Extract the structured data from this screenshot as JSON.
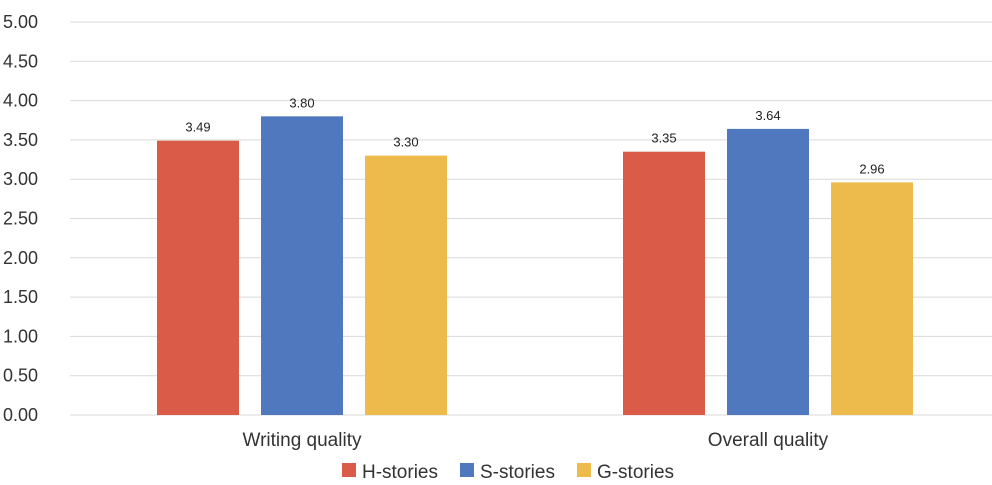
{
  "chart_data": {
    "type": "bar",
    "categories": [
      "Writing quality",
      "Overall quality"
    ],
    "series": [
      {
        "name": "H-stories",
        "values": [
          3.49,
          3.35
        ],
        "color": "#DA5B47"
      },
      {
        "name": "S-stories",
        "values": [
          3.8,
          3.64
        ],
        "color": "#5078BF"
      },
      {
        "name": "G-stories",
        "values": [
          3.3,
          2.96
        ],
        "color": "#EDBB4B"
      }
    ],
    "title": "",
    "xlabel": "",
    "ylabel": "",
    "ylim": [
      0,
      5
    ],
    "yticks": [
      "0.00",
      "0.50",
      "1.00",
      "1.50",
      "2.00",
      "2.50",
      "3.00",
      "3.50",
      "4.00",
      "4.50",
      "5.00"
    ],
    "grid": true,
    "legend_position": "bottom",
    "gridline_color": "#D9D9D9"
  }
}
